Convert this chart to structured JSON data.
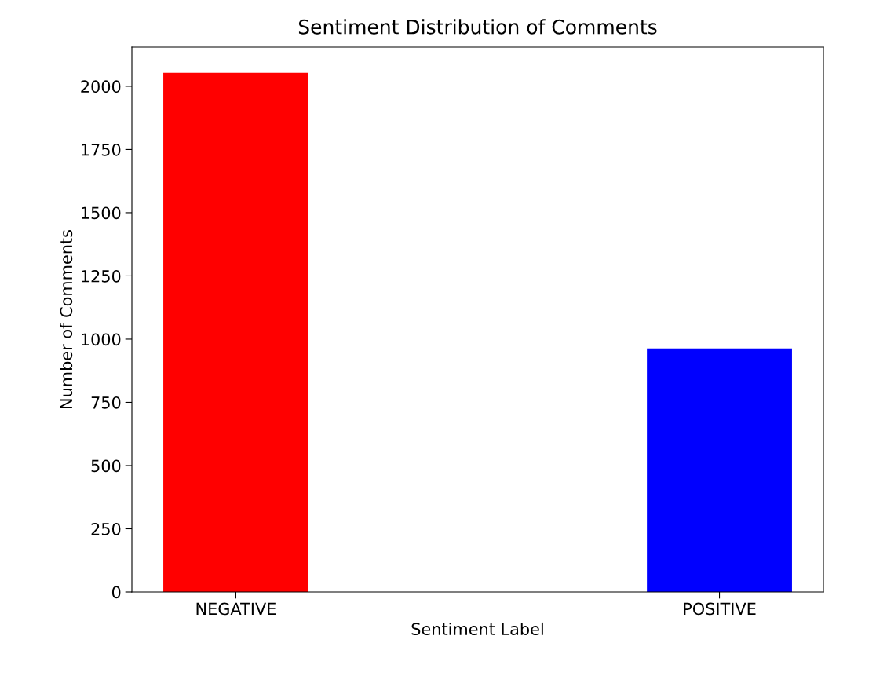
{
  "chart_data": {
    "type": "bar",
    "title": "Sentiment Distribution of Comments",
    "xlabel": "Sentiment Label",
    "ylabel": "Number of Comments",
    "categories": [
      "NEGATIVE",
      "POSITIVE"
    ],
    "values": [
      2053,
      963
    ],
    "colors": [
      "#ff0000",
      "#0000ff"
    ],
    "ylim": [
      0,
      2155
    ],
    "yticks": [
      0,
      250,
      500,
      750,
      1000,
      1250,
      1500,
      1750,
      2000
    ],
    "grid": false,
    "legend": false
  }
}
